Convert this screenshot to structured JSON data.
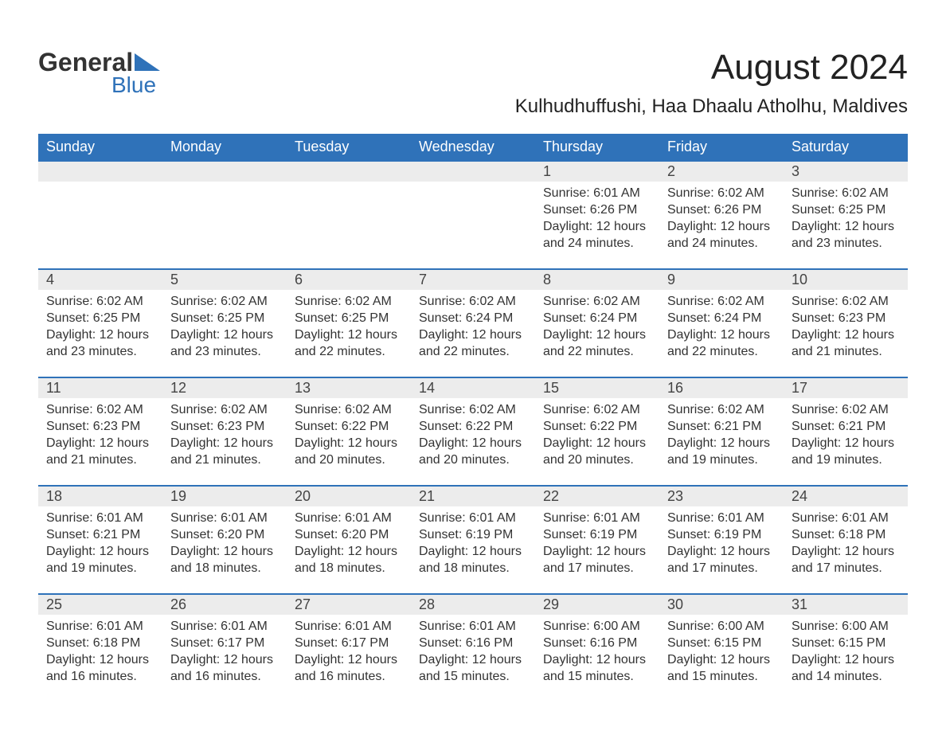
{
  "logo": {
    "word1": "General",
    "word2": "Blue",
    "accent_color": "#2f72b9",
    "text_color": "#333333"
  },
  "title": "August 2024",
  "location": "Kulhudhuffushi, Haa Dhaalu Atholhu, Maldives",
  "colors": {
    "header_bg": "#2f72b9",
    "header_fg": "#ffffff",
    "daynum_bg": "#ececec",
    "row_divider": "#2f72b9",
    "body_text": "#333333",
    "page_bg": "#ffffff"
  },
  "fonts": {
    "title_size": 44,
    "location_size": 24,
    "dayheader_size": 18,
    "daynum_size": 18,
    "body_size": 16
  },
  "day_headers": [
    "Sunday",
    "Monday",
    "Tuesday",
    "Wednesday",
    "Thursday",
    "Friday",
    "Saturday"
  ],
  "weeks": [
    [
      null,
      null,
      null,
      null,
      {
        "n": "1",
        "sr": "Sunrise: 6:01 AM",
        "ss": "Sunset: 6:26 PM",
        "dl": "Daylight: 12 hours and 24 minutes."
      },
      {
        "n": "2",
        "sr": "Sunrise: 6:02 AM",
        "ss": "Sunset: 6:26 PM",
        "dl": "Daylight: 12 hours and 24 minutes."
      },
      {
        "n": "3",
        "sr": "Sunrise: 6:02 AM",
        "ss": "Sunset: 6:25 PM",
        "dl": "Daylight: 12 hours and 23 minutes."
      }
    ],
    [
      {
        "n": "4",
        "sr": "Sunrise: 6:02 AM",
        "ss": "Sunset: 6:25 PM",
        "dl": "Daylight: 12 hours and 23 minutes."
      },
      {
        "n": "5",
        "sr": "Sunrise: 6:02 AM",
        "ss": "Sunset: 6:25 PM",
        "dl": "Daylight: 12 hours and 23 minutes."
      },
      {
        "n": "6",
        "sr": "Sunrise: 6:02 AM",
        "ss": "Sunset: 6:25 PM",
        "dl": "Daylight: 12 hours and 22 minutes."
      },
      {
        "n": "7",
        "sr": "Sunrise: 6:02 AM",
        "ss": "Sunset: 6:24 PM",
        "dl": "Daylight: 12 hours and 22 minutes."
      },
      {
        "n": "8",
        "sr": "Sunrise: 6:02 AM",
        "ss": "Sunset: 6:24 PM",
        "dl": "Daylight: 12 hours and 22 minutes."
      },
      {
        "n": "9",
        "sr": "Sunrise: 6:02 AM",
        "ss": "Sunset: 6:24 PM",
        "dl": "Daylight: 12 hours and 22 minutes."
      },
      {
        "n": "10",
        "sr": "Sunrise: 6:02 AM",
        "ss": "Sunset: 6:23 PM",
        "dl": "Daylight: 12 hours and 21 minutes."
      }
    ],
    [
      {
        "n": "11",
        "sr": "Sunrise: 6:02 AM",
        "ss": "Sunset: 6:23 PM",
        "dl": "Daylight: 12 hours and 21 minutes."
      },
      {
        "n": "12",
        "sr": "Sunrise: 6:02 AM",
        "ss": "Sunset: 6:23 PM",
        "dl": "Daylight: 12 hours and 21 minutes."
      },
      {
        "n": "13",
        "sr": "Sunrise: 6:02 AM",
        "ss": "Sunset: 6:22 PM",
        "dl": "Daylight: 12 hours and 20 minutes."
      },
      {
        "n": "14",
        "sr": "Sunrise: 6:02 AM",
        "ss": "Sunset: 6:22 PM",
        "dl": "Daylight: 12 hours and 20 minutes."
      },
      {
        "n": "15",
        "sr": "Sunrise: 6:02 AM",
        "ss": "Sunset: 6:22 PM",
        "dl": "Daylight: 12 hours and 20 minutes."
      },
      {
        "n": "16",
        "sr": "Sunrise: 6:02 AM",
        "ss": "Sunset: 6:21 PM",
        "dl": "Daylight: 12 hours and 19 minutes."
      },
      {
        "n": "17",
        "sr": "Sunrise: 6:02 AM",
        "ss": "Sunset: 6:21 PM",
        "dl": "Daylight: 12 hours and 19 minutes."
      }
    ],
    [
      {
        "n": "18",
        "sr": "Sunrise: 6:01 AM",
        "ss": "Sunset: 6:21 PM",
        "dl": "Daylight: 12 hours and 19 minutes."
      },
      {
        "n": "19",
        "sr": "Sunrise: 6:01 AM",
        "ss": "Sunset: 6:20 PM",
        "dl": "Daylight: 12 hours and 18 minutes."
      },
      {
        "n": "20",
        "sr": "Sunrise: 6:01 AM",
        "ss": "Sunset: 6:20 PM",
        "dl": "Daylight: 12 hours and 18 minutes."
      },
      {
        "n": "21",
        "sr": "Sunrise: 6:01 AM",
        "ss": "Sunset: 6:19 PM",
        "dl": "Daylight: 12 hours and 18 minutes."
      },
      {
        "n": "22",
        "sr": "Sunrise: 6:01 AM",
        "ss": "Sunset: 6:19 PM",
        "dl": "Daylight: 12 hours and 17 minutes."
      },
      {
        "n": "23",
        "sr": "Sunrise: 6:01 AM",
        "ss": "Sunset: 6:19 PM",
        "dl": "Daylight: 12 hours and 17 minutes."
      },
      {
        "n": "24",
        "sr": "Sunrise: 6:01 AM",
        "ss": "Sunset: 6:18 PM",
        "dl": "Daylight: 12 hours and 17 minutes."
      }
    ],
    [
      {
        "n": "25",
        "sr": "Sunrise: 6:01 AM",
        "ss": "Sunset: 6:18 PM",
        "dl": "Daylight: 12 hours and 16 minutes."
      },
      {
        "n": "26",
        "sr": "Sunrise: 6:01 AM",
        "ss": "Sunset: 6:17 PM",
        "dl": "Daylight: 12 hours and 16 minutes."
      },
      {
        "n": "27",
        "sr": "Sunrise: 6:01 AM",
        "ss": "Sunset: 6:17 PM",
        "dl": "Daylight: 12 hours and 16 minutes."
      },
      {
        "n": "28",
        "sr": "Sunrise: 6:01 AM",
        "ss": "Sunset: 6:16 PM",
        "dl": "Daylight: 12 hours and 15 minutes."
      },
      {
        "n": "29",
        "sr": "Sunrise: 6:00 AM",
        "ss": "Sunset: 6:16 PM",
        "dl": "Daylight: 12 hours and 15 minutes."
      },
      {
        "n": "30",
        "sr": "Sunrise: 6:00 AM",
        "ss": "Sunset: 6:15 PM",
        "dl": "Daylight: 12 hours and 15 minutes."
      },
      {
        "n": "31",
        "sr": "Sunrise: 6:00 AM",
        "ss": "Sunset: 6:15 PM",
        "dl": "Daylight: 12 hours and 14 minutes."
      }
    ]
  ]
}
